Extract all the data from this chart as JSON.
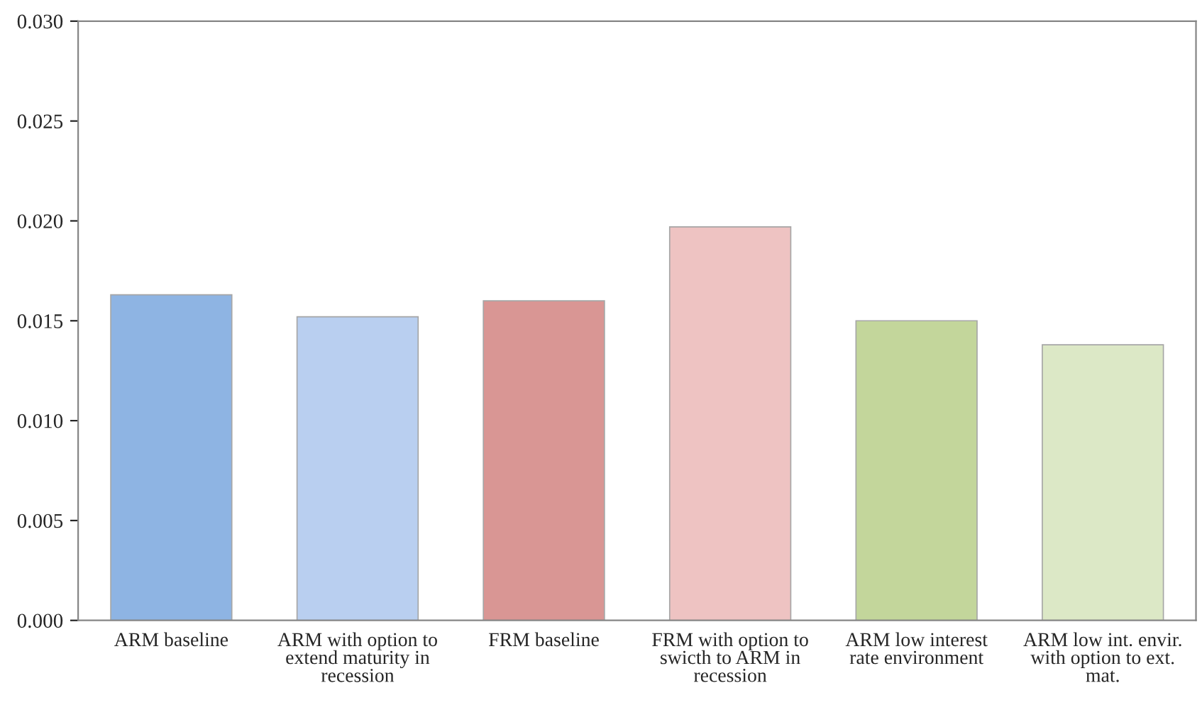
{
  "chart_data": {
    "type": "bar",
    "categories": [
      "ARM baseline",
      "ARM with option to extend maturity in recession",
      "FRM baseline",
      "FRM with option to swicth to ARM in recession",
      "ARM low interest rate environment",
      "ARM low int. envir. with option to ext. mat."
    ],
    "values": [
      0.0163,
      0.0152,
      0.016,
      0.0197,
      0.015,
      0.0138
    ],
    "colors": [
      "#8eb4e3",
      "#b9cff0",
      "#d99694",
      "#eec3c2",
      "#c3d69b",
      "#dce8c6"
    ],
    "ylim": [
      0,
      0.03
    ],
    "yticks": [
      {
        "value": 0,
        "label": "0.000"
      },
      {
        "value": 0.005,
        "label": "0.005"
      },
      {
        "value": 0.01,
        "label": "0.010"
      },
      {
        "value": 0.015,
        "label": "0.015"
      },
      {
        "value": 0.02,
        "label": "0.020"
      },
      {
        "value": 0.025,
        "label": "0.025"
      },
      {
        "value": 0.03,
        "label": "0.030"
      }
    ],
    "grid": false,
    "legend": false
  }
}
